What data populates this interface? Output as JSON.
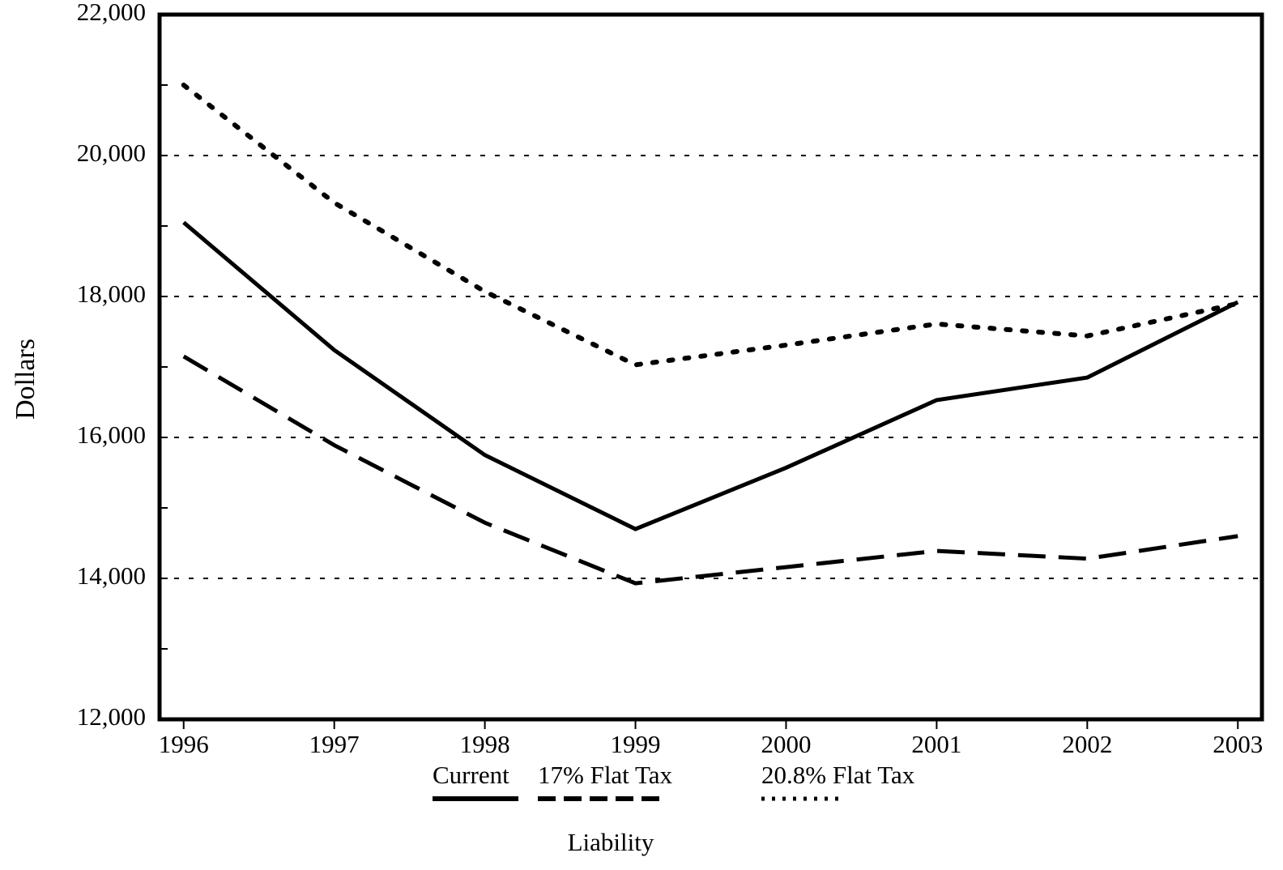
{
  "chart_data": {
    "type": "line",
    "y_label": "Dollars",
    "x": [
      1996,
      1997,
      1998,
      1999,
      2000,
      2001,
      2002,
      2003
    ],
    "xlim": [
      1995.84,
      2003.16
    ],
    "xticks": [
      1996,
      1997,
      1998,
      1999,
      2000,
      2001,
      2002,
      2003
    ],
    "ylim": [
      12000,
      22000
    ],
    "yticks": [
      {
        "value": 12000,
        "label": "12,000"
      },
      {
        "value": 14000,
        "label": "14,000"
      },
      {
        "value": 16000,
        "label": "16,000"
      },
      {
        "value": 18000,
        "label": "18,000"
      },
      {
        "value": 20000,
        "label": "20,000"
      },
      {
        "value": 22000,
        "label": "22,000"
      }
    ],
    "minor_yticks": [
      13000,
      15000,
      17000,
      19000,
      21000
    ],
    "grid": true,
    "legend_title": "Liability",
    "series": [
      {
        "name": "Current",
        "color": "#000000",
        "dash": "solid",
        "values": [
          19050,
          17240,
          15750,
          14700,
          15570,
          16530,
          16850,
          17920
        ]
      },
      {
        "name": "17% Flat Tax",
        "color": "#000000",
        "dash": "dashed",
        "values": [
          17150,
          15890,
          14790,
          13930,
          14160,
          14390,
          14280,
          14600
        ]
      },
      {
        "name": "20.8% Flat Tax",
        "color": "#000000",
        "dash": "dotted",
        "values": [
          21000,
          19330,
          18070,
          17030,
          17310,
          17610,
          17440,
          17900
        ]
      }
    ]
  }
}
